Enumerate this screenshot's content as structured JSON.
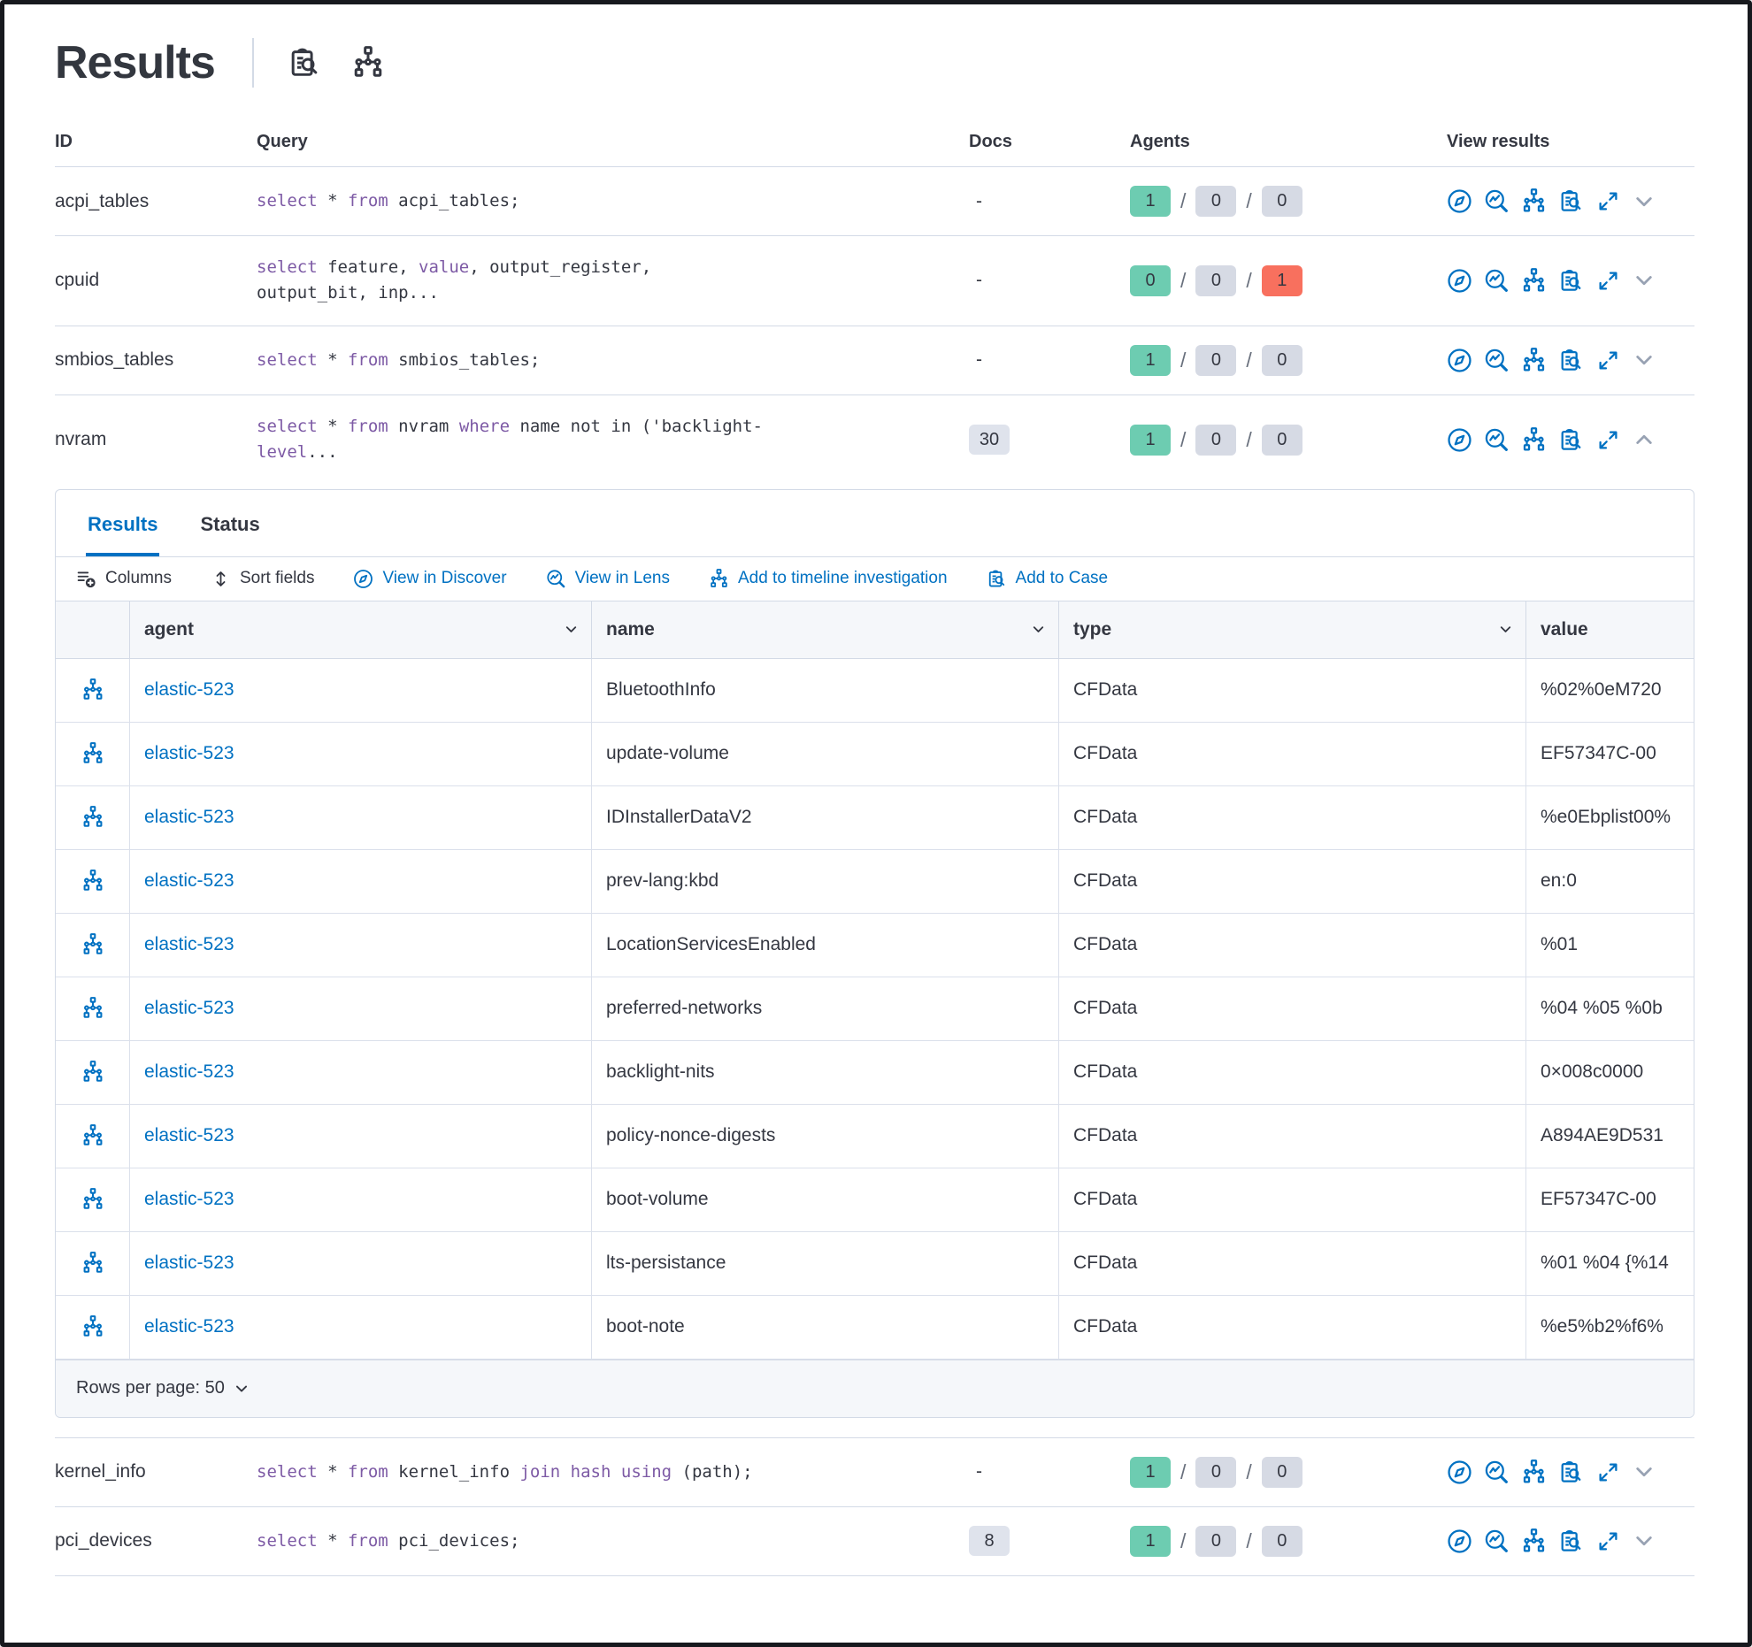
{
  "page": {
    "title": "Results"
  },
  "header_icons": [
    {
      "icon": "case",
      "name": "clipboard-search-icon"
    },
    {
      "icon": "timeline",
      "name": "sitemap-icon"
    }
  ],
  "colors": {
    "primary": "#0071c2",
    "text": "#343741",
    "border": "#d3dae6",
    "success_badge": "#6dccb1",
    "neutral_badge": "#d6dae4",
    "danger_badge": "#f8705e",
    "sql_keyword": "#7d5aa5",
    "header_bg": "#f5f7fa"
  },
  "results_table": {
    "columns": {
      "id": "ID",
      "query": "Query",
      "docs": "Docs",
      "agents": "Agents",
      "view_results": "View results"
    },
    "view_actions": [
      "discover",
      "lens",
      "timeline",
      "case",
      "expand"
    ],
    "rows_top": [
      {
        "id": "acpi_tables",
        "query": [
          [
            "select",
            "k"
          ],
          [
            " * ",
            "d"
          ],
          [
            "from",
            "k"
          ],
          [
            " acpi_tables;",
            "d"
          ]
        ],
        "docs": "-",
        "docs_badge": false,
        "agents": [
          1,
          0,
          0
        ],
        "expanded": false
      },
      {
        "id": "cpuid",
        "query": [
          [
            "select",
            "k"
          ],
          [
            " feature, ",
            "d"
          ],
          [
            "value",
            "k"
          ],
          [
            ", output_register, output_bit, inp...",
            "d"
          ]
        ],
        "docs": "-",
        "docs_badge": false,
        "agents": [
          0,
          0,
          1
        ],
        "expanded": false
      },
      {
        "id": "smbios_tables",
        "query": [
          [
            "select",
            "k"
          ],
          [
            " * ",
            "d"
          ],
          [
            "from",
            "k"
          ],
          [
            " smbios_tables;",
            "d"
          ]
        ],
        "docs": "-",
        "docs_badge": false,
        "agents": [
          1,
          0,
          0
        ],
        "expanded": false
      },
      {
        "id": "nvram",
        "query": [
          [
            "select",
            "k"
          ],
          [
            " * ",
            "d"
          ],
          [
            "from",
            "k"
          ],
          [
            " nvram ",
            "d"
          ],
          [
            "where",
            "k"
          ],
          [
            " name not in ('backlight-",
            "d"
          ],
          [
            "level",
            "k"
          ],
          [
            "...",
            "d"
          ]
        ],
        "docs": "30",
        "docs_badge": true,
        "agents": [
          1,
          0,
          0
        ],
        "expanded": true
      }
    ],
    "rows_bottom": [
      {
        "id": "kernel_info",
        "query": [
          [
            "select",
            "k"
          ],
          [
            " * ",
            "d"
          ],
          [
            "from",
            "k"
          ],
          [
            " kernel_info ",
            "d"
          ],
          [
            "join",
            "k"
          ],
          [
            " ",
            "d"
          ],
          [
            "hash",
            "k"
          ],
          [
            " ",
            "d"
          ],
          [
            "using",
            "k"
          ],
          [
            " (path);",
            "d"
          ]
        ],
        "docs": "-",
        "docs_badge": false,
        "agents": [
          1,
          0,
          0
        ],
        "expanded": false
      },
      {
        "id": "pci_devices",
        "query": [
          [
            "select",
            "k"
          ],
          [
            " * ",
            "d"
          ],
          [
            "from",
            "k"
          ],
          [
            " pci_devices;",
            "d"
          ]
        ],
        "docs": "8",
        "docs_badge": true,
        "agents": [
          1,
          0,
          0
        ],
        "expanded": false
      }
    ]
  },
  "panel": {
    "tabs": [
      {
        "label": "Results",
        "active": true
      },
      {
        "label": "Status",
        "active": false
      }
    ],
    "toolbar": [
      {
        "label": "Columns",
        "icon": "columns",
        "style": "dark"
      },
      {
        "label": "Sort fields",
        "icon": "sort",
        "style": "dark"
      },
      {
        "label": "View in Discover",
        "icon": "discover",
        "style": "link"
      },
      {
        "label": "View in Lens",
        "icon": "lens",
        "style": "link"
      },
      {
        "label": "Add to timeline investigation",
        "icon": "timeline",
        "style": "link"
      },
      {
        "label": "Add to Case",
        "icon": "case",
        "style": "link"
      }
    ],
    "grid": {
      "columns": [
        {
          "key": "agent",
          "label": "agent",
          "sortable": true
        },
        {
          "key": "name",
          "label": "name",
          "sortable": true
        },
        {
          "key": "type",
          "label": "type",
          "sortable": true
        },
        {
          "key": "value",
          "label": "value",
          "sortable": false
        }
      ],
      "rows": [
        {
          "agent": "elastic-523",
          "name": "BluetoothInfo",
          "type": "CFData",
          "value": "%02%0eM720"
        },
        {
          "agent": "elastic-523",
          "name": "update-volume",
          "type": "CFData",
          "value": "EF57347C-00"
        },
        {
          "agent": "elastic-523",
          "name": "IDInstallerDataV2",
          "type": "CFData",
          "value": "%e0Ebplist00%"
        },
        {
          "agent": "elastic-523",
          "name": "prev-lang:kbd",
          "type": "CFData",
          "value": "en:0"
        },
        {
          "agent": "elastic-523",
          "name": "LocationServicesEnabled",
          "type": "CFData",
          "value": "%01"
        },
        {
          "agent": "elastic-523",
          "name": "preferred-networks",
          "type": "CFData",
          "value": "%04 %05 %0b"
        },
        {
          "agent": "elastic-523",
          "name": "backlight-nits",
          "type": "CFData",
          "value": "0×008c0000"
        },
        {
          "agent": "elastic-523",
          "name": "policy-nonce-digests",
          "type": "CFData",
          "value": "A894AE9D531"
        },
        {
          "agent": "elastic-523",
          "name": "boot-volume",
          "type": "CFData",
          "value": "EF57347C-00"
        },
        {
          "agent": "elastic-523",
          "name": "lts-persistance",
          "type": "CFData",
          "value": "%01 %04 {%14"
        },
        {
          "agent": "elastic-523",
          "name": "boot-note",
          "type": "CFData",
          "value": "%e5%b2%f6%"
        }
      ]
    },
    "pagination": {
      "label": "Rows per page: 50"
    }
  }
}
